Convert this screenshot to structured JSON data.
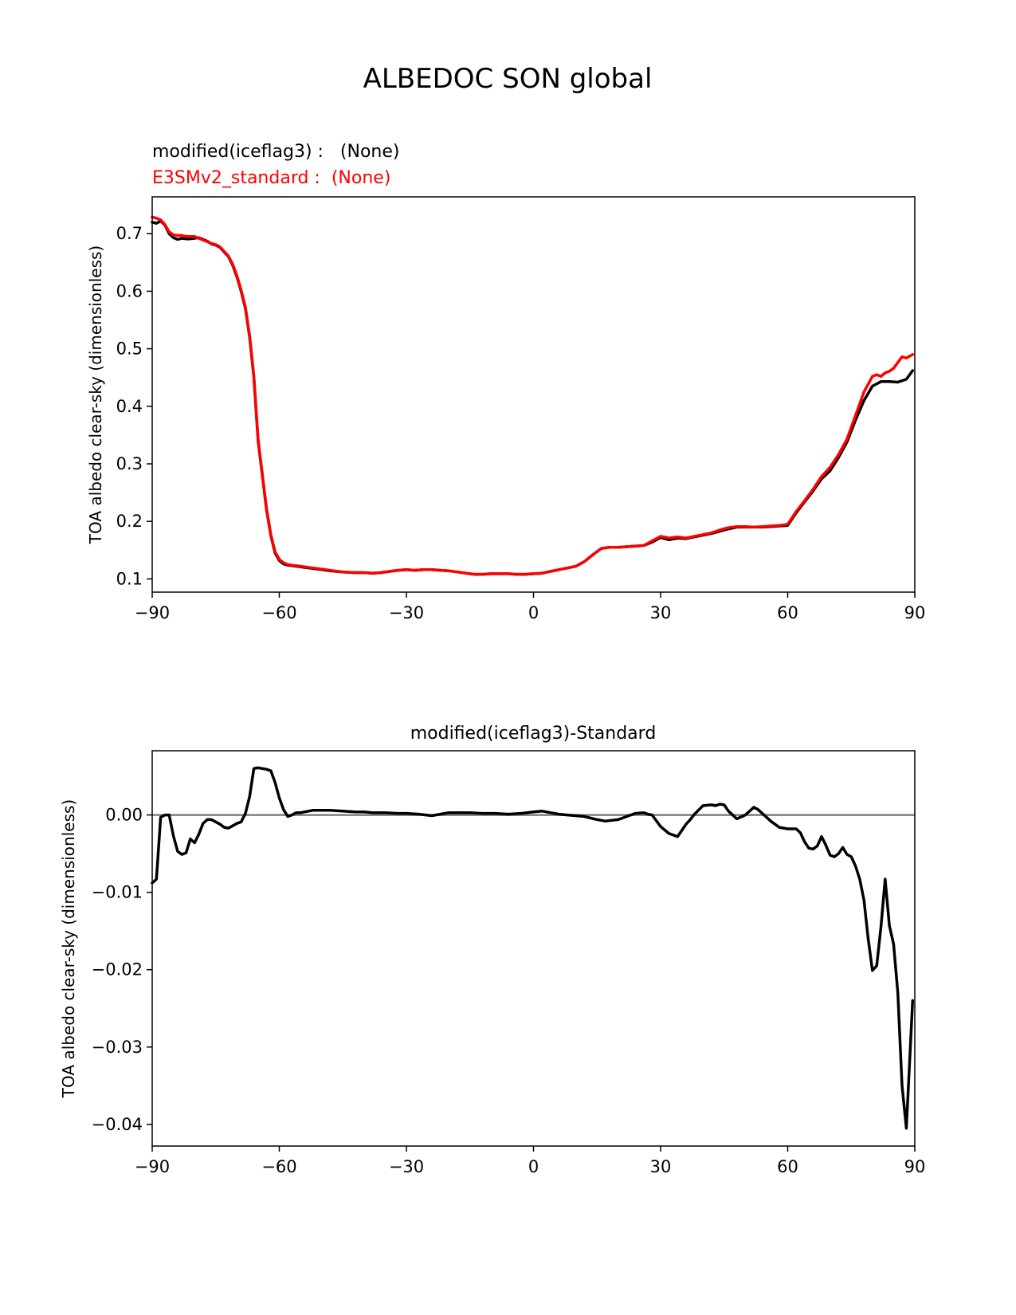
{
  "figure": {
    "title": "ALBEDOC SON global"
  },
  "chart_data": [
    {
      "type": "line",
      "title": "",
      "legend_placement": "top-left, above axes",
      "legend": [
        {
          "label": "modified(iceflag3) :   (None)",
          "color": "#000000"
        },
        {
          "label": "E3SMv2_standard :  (None)",
          "color": "#ff0000"
        }
      ],
      "xlabel": "",
      "ylabel": "TOA albedo clear-sky (dimensionless)",
      "xlim": [
        -90,
        90
      ],
      "ylim": [
        0.077,
        0.764
      ],
      "xticks": [
        -90,
        -60,
        -30,
        0,
        30,
        60,
        90
      ],
      "xtick_labels": [
        "−90",
        "−60",
        "−30",
        "0",
        "30",
        "60",
        "90"
      ],
      "yticks": [
        0.1,
        0.2,
        0.3,
        0.4,
        0.5,
        0.6,
        0.7
      ],
      "ytick_labels": [
        "0.1",
        "0.2",
        "0.3",
        "0.4",
        "0.5",
        "0.6",
        "0.7"
      ],
      "grid": false,
      "series": [
        {
          "name": "modified(iceflag3)",
          "color": "#000000",
          "x": [
            -90,
            -89,
            -88,
            -87,
            -86,
            -85,
            -84,
            -83,
            -82,
            -81,
            -80,
            -79,
            -78,
            -77,
            -76,
            -75,
            -74,
            -73,
            -72,
            -71,
            -70,
            -69,
            -68,
            -67,
            -66,
            -65,
            -64,
            -63,
            -62,
            -61,
            -60,
            -59,
            -58,
            -57,
            -56,
            -55,
            -54,
            -53,
            -52,
            -50,
            -48,
            -45,
            -42,
            -40,
            -38,
            -36,
            -34,
            -32,
            -30,
            -28,
            -26,
            -24,
            -22,
            -20,
            -18,
            -16,
            -14,
            -12,
            -10,
            -8,
            -6,
            -4,
            -2,
            0,
            2,
            4,
            6,
            8,
            10,
            12,
            14,
            16,
            18,
            20,
            22,
            24,
            26,
            28,
            30,
            32,
            34,
            36,
            38,
            40,
            42,
            44,
            46,
            48,
            50,
            52,
            54,
            56,
            58,
            60,
            62,
            64,
            66,
            68,
            70,
            72,
            74,
            76,
            78,
            80,
            82,
            84,
            86,
            88,
            89.5
          ],
          "y": [
            0.72,
            0.718,
            0.722,
            0.715,
            0.7,
            0.693,
            0.69,
            0.692,
            0.691,
            0.691,
            0.692,
            0.693,
            0.69,
            0.687,
            0.682,
            0.68,
            0.676,
            0.668,
            0.66,
            0.645,
            0.625,
            0.6,
            0.57,
            0.52,
            0.45,
            0.34,
            0.28,
            0.22,
            0.175,
            0.145,
            0.132,
            0.126,
            0.124,
            0.123,
            0.122,
            0.121,
            0.12,
            0.119,
            0.118,
            0.116,
            0.114,
            0.112,
            0.111,
            0.111,
            0.11,
            0.111,
            0.113,
            0.115,
            0.116,
            0.115,
            0.116,
            0.116,
            0.115,
            0.114,
            0.112,
            0.11,
            0.108,
            0.108,
            0.109,
            0.109,
            0.109,
            0.108,
            0.108,
            0.109,
            0.11,
            0.113,
            0.116,
            0.119,
            0.122,
            0.13,
            0.142,
            0.153,
            0.155,
            0.155,
            0.156,
            0.157,
            0.158,
            0.164,
            0.172,
            0.168,
            0.171,
            0.17,
            0.173,
            0.176,
            0.179,
            0.183,
            0.187,
            0.19,
            0.19,
            0.19,
            0.19,
            0.191,
            0.192,
            0.193,
            0.215,
            0.234,
            0.253,
            0.274,
            0.288,
            0.311,
            0.338,
            0.376,
            0.41,
            0.435,
            0.443,
            0.443,
            0.442,
            0.447,
            0.462
          ]
        },
        {
          "name": "E3SMv2_standard",
          "color": "#ff0000",
          "x": [
            -90,
            -89,
            -88,
            -87,
            -86,
            -85,
            -84,
            -83,
            -82,
            -81,
            -80,
            -79,
            -78,
            -77,
            -76,
            -75,
            -74,
            -73,
            -72,
            -71,
            -70,
            -69,
            -68,
            -67,
            -66,
            -65,
            -64,
            -63,
            -62,
            -61,
            -60,
            -59,
            -58,
            -57,
            -56,
            -55,
            -54,
            -53,
            -52,
            -50,
            -48,
            -45,
            -42,
            -40,
            -38,
            -36,
            -34,
            -32,
            -30,
            -28,
            -26,
            -24,
            -22,
            -20,
            -18,
            -16,
            -14,
            -12,
            -10,
            -8,
            -6,
            -4,
            -2,
            0,
            2,
            4,
            6,
            8,
            10,
            12,
            14,
            16,
            18,
            20,
            22,
            24,
            26,
            28,
            30,
            32,
            34,
            36,
            38,
            40,
            42,
            44,
            46,
            48,
            50,
            52,
            54,
            56,
            58,
            60,
            62,
            64,
            66,
            68,
            70,
            72,
            74,
            76,
            78,
            80,
            81,
            82,
            83,
            84,
            85,
            86,
            87,
            88,
            89.5
          ],
          "y": [
            0.729,
            0.727,
            0.724,
            0.716,
            0.703,
            0.698,
            0.697,
            0.697,
            0.695,
            0.695,
            0.695,
            0.692,
            0.689,
            0.686,
            0.683,
            0.681,
            0.677,
            0.669,
            0.661,
            0.647,
            0.627,
            0.602,
            0.572,
            0.522,
            0.452,
            0.342,
            0.282,
            0.222,
            0.177,
            0.147,
            0.134,
            0.128,
            0.125,
            0.124,
            0.123,
            0.122,
            0.121,
            0.12,
            0.119,
            0.117,
            0.115,
            0.112,
            0.111,
            0.111,
            0.11,
            0.111,
            0.113,
            0.115,
            0.116,
            0.115,
            0.116,
            0.116,
            0.115,
            0.114,
            0.112,
            0.11,
            0.108,
            0.108,
            0.109,
            0.109,
            0.109,
            0.108,
            0.108,
            0.109,
            0.11,
            0.113,
            0.116,
            0.119,
            0.122,
            0.13,
            0.142,
            0.153,
            0.155,
            0.155,
            0.156,
            0.157,
            0.158,
            0.166,
            0.174,
            0.171,
            0.173,
            0.171,
            0.174,
            0.177,
            0.18,
            0.185,
            0.189,
            0.191,
            0.191,
            0.19,
            0.191,
            0.192,
            0.193,
            0.195,
            0.217,
            0.236,
            0.256,
            0.278,
            0.294,
            0.316,
            0.343,
            0.384,
            0.425,
            0.452,
            0.455,
            0.452,
            0.458,
            0.461,
            0.466,
            0.476,
            0.486,
            0.484,
            0.49
          ]
        }
      ]
    },
    {
      "type": "line",
      "title": "modified(iceflag3)-Standard",
      "xlabel": "",
      "ylabel": "TOA albedo clear-sky (dimensionless)",
      "xlim": [
        -90,
        90
      ],
      "ylim": [
        -0.0428,
        0.0083
      ],
      "xticks": [
        -90,
        -60,
        -30,
        0,
        30,
        60,
        90
      ],
      "xtick_labels": [
        "−90",
        "−60",
        "−30",
        "0",
        "30",
        "60",
        "90"
      ],
      "yticks": [
        0.0,
        -0.01,
        -0.02,
        -0.03,
        -0.04
      ],
      "ytick_labels": [
        "0.00",
        "−0.01",
        "−0.02",
        "−0.03",
        "−0.04"
      ],
      "grid": false,
      "zero_line": {
        "y": 0,
        "color": "#808080"
      },
      "series": [
        {
          "name": "",
          "color": "#000000",
          "x": [
            -90,
            -89,
            -88,
            -87,
            -86,
            -85,
            -84,
            -83,
            -82,
            -81,
            -80,
            -79,
            -78,
            -77,
            -76,
            -75,
            -74,
            -73,
            -72,
            -71,
            -70,
            -69,
            -68,
            -67,
            -66,
            -65,
            -64,
            -63,
            -62,
            -61,
            -60,
            -59,
            -58,
            -57,
            -56,
            -55,
            -54,
            -52,
            -50,
            -48,
            -45,
            -42,
            -40,
            -38,
            -35,
            -32,
            -30,
            -27,
            -24,
            -22,
            -20,
            -18,
            -15,
            -12,
            -9,
            -6,
            -3,
            0,
            2,
            4,
            6,
            8,
            10,
            12,
            15,
            17,
            20,
            22,
            24,
            26,
            27,
            28,
            30,
            32,
            34,
            36,
            37,
            38,
            40,
            42,
            43,
            44,
            45,
            46,
            48,
            50,
            52,
            53,
            54,
            56,
            58,
            60,
            62,
            63,
            64,
            65,
            66,
            67,
            68,
            69,
            70,
            71,
            72,
            73,
            74,
            75,
            76,
            77,
            78,
            79,
            80,
            81,
            82,
            83,
            84,
            85,
            86,
            87,
            88,
            89.5
          ],
          "y": [
            -0.0088,
            -0.0083,
            -0.0003,
            0.0,
            0.0,
            -0.0027,
            -0.0047,
            -0.0051,
            -0.0049,
            -0.0031,
            -0.0036,
            -0.0025,
            -0.0011,
            -0.0006,
            -0.0006,
            -0.0009,
            -0.0012,
            -0.0016,
            -0.0017,
            -0.0014,
            -0.0011,
            -0.0009,
            0.0002,
            0.0024,
            0.006,
            0.0061,
            0.006,
            0.0059,
            0.0057,
            0.0042,
            0.0022,
            0.0007,
            -0.0002,
            0.0,
            0.0003,
            0.0003,
            0.0004,
            0.0006,
            0.0006,
            0.0006,
            0.0005,
            0.0004,
            0.0004,
            0.0003,
            0.0003,
            0.0002,
            0.0002,
            0.0001,
            -0.0001,
            0.0001,
            0.0003,
            0.0003,
            0.0003,
            0.0002,
            0.0002,
            0.0001,
            0.0002,
            0.0004,
            0.0005,
            0.0003,
            0.0001,
            0.0,
            -0.0001,
            -0.0002,
            -0.0006,
            -0.0008,
            -0.0006,
            -0.0002,
            0.0002,
            0.0003,
            0.0001,
            0.0,
            -0.0015,
            -0.0024,
            -0.0028,
            -0.0012,
            -0.0006,
            0.0001,
            0.0012,
            0.0013,
            0.0012,
            0.0014,
            0.0013,
            0.0005,
            -0.0005,
            0.0,
            0.001,
            0.0007,
            0.0002,
            -0.0008,
            -0.0016,
            -0.0018,
            -0.0018,
            -0.0023,
            -0.0035,
            -0.0043,
            -0.0044,
            -0.004,
            -0.0028,
            -0.0039,
            -0.0052,
            -0.0054,
            -0.005,
            -0.0042,
            -0.0051,
            -0.0054,
            -0.0066,
            -0.0083,
            -0.011,
            -0.016,
            -0.0201,
            -0.0195,
            -0.0145,
            -0.0083,
            -0.0143,
            -0.0167,
            -0.023,
            -0.035,
            -0.0405,
            -0.024
          ]
        }
      ]
    }
  ]
}
